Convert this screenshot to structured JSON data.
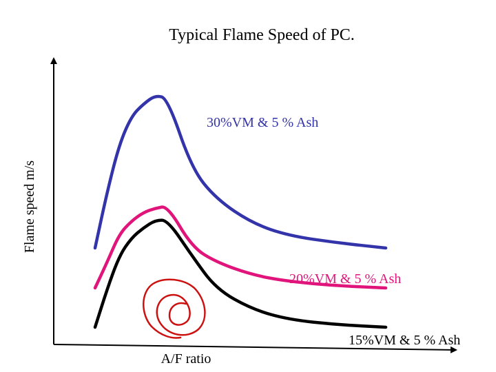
{
  "chart_data": {
    "type": "line",
    "title": "Typical Flame Speed of PC.",
    "xlabel": "A/F ratio",
    "ylabel": "Flame speed m/s",
    "grid": false,
    "series": [
      {
        "name": "30%VM & 5 % Ash",
        "color": "#3333aa",
        "x": [
          1.0,
          1.1,
          1.2,
          1.3,
          1.4,
          1.5,
          1.6,
          1.8,
          2.0,
          2.3,
          2.6,
          3.0,
          3.4
        ],
        "y": [
          0.0,
          0.32,
          0.59,
          0.75,
          0.82,
          0.87,
          0.85,
          0.45,
          0.28,
          0.14,
          0.07,
          0.03,
          0.0
        ]
      },
      {
        "name": "20%VM & 5 % Ash",
        "color": "#e0147a",
        "x": [
          1.0,
          1.1,
          1.2,
          1.3,
          1.4,
          1.5,
          1.6,
          1.8,
          2.0,
          2.3,
          2.6,
          3.0,
          3.4
        ],
        "y": [
          0.0,
          0.12,
          0.25,
          0.31,
          0.35,
          0.37,
          0.38,
          0.19,
          0.12,
          0.06,
          0.03,
          0.01,
          0.0
        ]
      },
      {
        "name": "15%VM & 5 % Ash",
        "color": "#000000",
        "x": [
          1.0,
          1.1,
          1.2,
          1.3,
          1.4,
          1.5,
          1.6,
          1.8,
          2.0,
          2.3,
          2.6,
          3.0,
          3.4
        ],
        "y": [
          0.0,
          0.15,
          0.28,
          0.35,
          0.39,
          0.42,
          0.42,
          0.28,
          0.15,
          0.07,
          0.03,
          0.01,
          0.0
        ]
      }
    ],
    "annotations": [
      {
        "text": "red spiral doodle",
        "color": "#cc1111"
      }
    ]
  }
}
